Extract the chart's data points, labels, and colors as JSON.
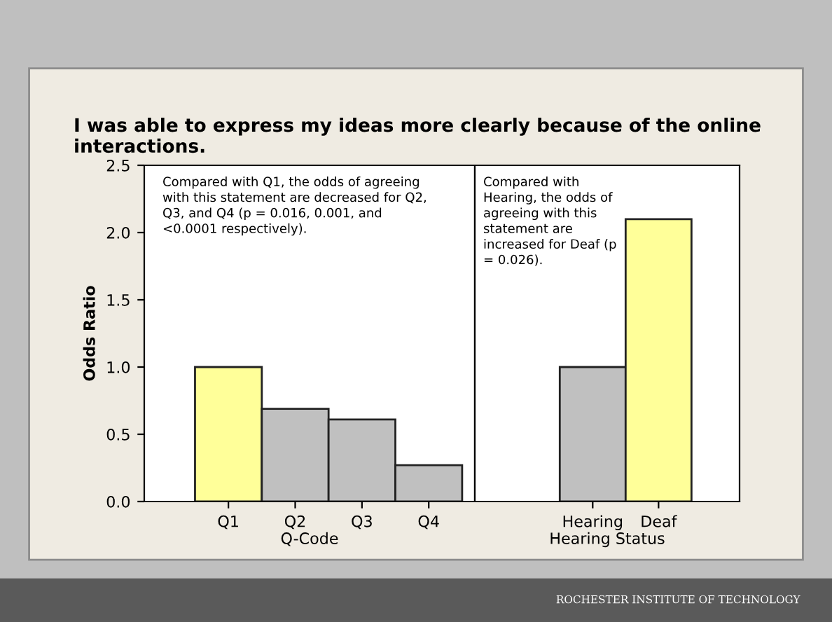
{
  "chart_data": [
    {
      "type": "bar",
      "title": "I was able to express my ideas more clearly because of the online interactions.",
      "xlabel": "Q-Code",
      "ylabel": "Odds Ratio",
      "categories": [
        "Q1",
        "Q2",
        "Q3",
        "Q4"
      ],
      "values": [
        1.0,
        0.69,
        0.61,
        0.27
      ],
      "colors": [
        "#ffff99",
        "#c0c0c0",
        "#c0c0c0",
        "#c0c0c0"
      ],
      "ylim": [
        0,
        2.5
      ],
      "yticks": [
        {
          "value": 0,
          "label": "0.0"
        },
        {
          "value": 0.5,
          "label": "0.5"
        },
        {
          "value": 1,
          "label": "1.0"
        },
        {
          "value": 1.5,
          "label": "1.5"
        },
        {
          "value": 2,
          "label": "2.0"
        },
        {
          "value": 2.5,
          "label": "2.5"
        }
      ],
      "grid": false,
      "annotations": [
        "Compared with Q1, the odds of agreeing with this statement are decreased for Q2, Q3, and Q4 (p = 0.016, 0.001, and <0.0001 respectively).",
        "ROCHESTER INSTITUTE OF TECHNOLOGY"
      ]
    },
    {
      "type": "bar",
      "xlabel": "Hearing Status",
      "categories": [
        "Hearing",
        "Deaf"
      ],
      "values": [
        1.0,
        2.1
      ],
      "colors": [
        "#c0c0c0",
        "#ffff99"
      ],
      "ylim": [
        0,
        2.5
      ],
      "tick_labels": "x",
      "grid": false,
      "annotations": [
        "Compared with Hearing, the odds of agreeing with this statement are increased for Deaf (p = 0.026)."
      ]
    }
  ]
}
